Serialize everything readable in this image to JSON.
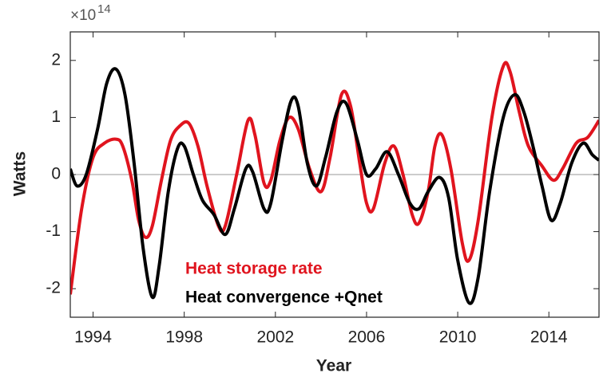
{
  "chart_data": {
    "type": "line",
    "xlabel": "Year",
    "ylabel": "Watts",
    "y_multiplier": {
      "base": "×10",
      "exponent": "14"
    },
    "xlim": [
      1993,
      2016.2
    ],
    "ylim": [
      -2.5,
      2.5
    ],
    "xticks": [
      1994,
      1998,
      2002,
      2006,
      2010,
      2014
    ],
    "yticks": [
      -2,
      -1,
      0,
      1,
      2
    ],
    "zero_line": true,
    "series": [
      {
        "name": "Heat storage rate",
        "color": "#e0141e",
        "x": [
          1993,
          1993.5,
          1994,
          1994.5,
          1995,
          1995.3,
          1995.7,
          1996,
          1996.3,
          1996.6,
          1997,
          1997.4,
          1997.8,
          1998.2,
          1998.6,
          1999,
          1999.5,
          1999.8,
          2000.3,
          2000.8,
          2001.1,
          2001.5,
          2001.8,
          2002.2,
          2002.6,
          2003,
          2003.5,
          2004,
          2004.4,
          2004.9,
          2005.3,
          2005.7,
          2006,
          2006.3,
          2006.8,
          2007.2,
          2007.6,
          2008,
          2008.3,
          2008.7,
          2009,
          2009.3,
          2009.7,
          2010.2,
          2010.5,
          2010.9,
          2011.5,
          2012,
          2012.3,
          2012.7,
          2013.1,
          2013.7,
          2014.2,
          2014.6,
          2015.2,
          2015.7,
          2016.2
        ],
        "values": [
          -2.1,
          -0.6,
          0.3,
          0.55,
          0.62,
          0.5,
          -0.1,
          -0.8,
          -1.1,
          -0.9,
          -0.1,
          0.6,
          0.85,
          0.9,
          0.5,
          -0.2,
          -0.9,
          -0.9,
          0.0,
          0.95,
          0.7,
          -0.15,
          -0.1,
          0.6,
          1.0,
          0.8,
          0.1,
          -0.3,
          0.3,
          1.4,
          1.2,
          0.2,
          -0.5,
          -0.6,
          0.2,
          0.5,
          0.0,
          -0.7,
          -0.85,
          -0.3,
          0.5,
          0.7,
          0.1,
          -1.2,
          -1.5,
          -0.8,
          1.0,
          1.9,
          1.8,
          1.1,
          0.5,
          0.15,
          -0.1,
          0.1,
          0.55,
          0.65,
          0.95
        ]
      },
      {
        "name": "Heat convergence +Qnet",
        "color": "#000000",
        "x": [
          1993,
          1993.3,
          1993.7,
          1994.2,
          1994.6,
          1995,
          1995.4,
          1995.8,
          1996.2,
          1996.6,
          1996.9,
          1997.3,
          1997.7,
          1998,
          1998.4,
          1998.8,
          1999.3,
          1999.8,
          2000.2,
          2000.7,
          2001,
          2001.5,
          2001.8,
          2002.3,
          2002.7,
          2003,
          2003.4,
          2003.8,
          2004.2,
          2004.7,
          2005.1,
          2005.6,
          2006,
          2006.4,
          2006.9,
          2007.4,
          2007.9,
          2008.3,
          2008.7,
          2009.2,
          2009.6,
          2010,
          2010.5,
          2010.9,
          2011.4,
          2012,
          2012.5,
          2012.9,
          2013.3,
          2013.7,
          2014.1,
          2014.5,
          2015,
          2015.5,
          2015.9,
          2016.2
        ],
        "values": [
          0.1,
          -0.2,
          0.0,
          0.8,
          1.6,
          1.85,
          1.4,
          0.2,
          -1.3,
          -2.15,
          -1.6,
          -0.3,
          0.45,
          0.5,
          0.0,
          -0.45,
          -0.7,
          -1.05,
          -0.6,
          0.1,
          0.05,
          -0.6,
          -0.5,
          0.6,
          1.3,
          1.2,
          0.2,
          -0.2,
          0.3,
          1.1,
          1.25,
          0.6,
          0.0,
          0.1,
          0.4,
          0.0,
          -0.5,
          -0.6,
          -0.3,
          -0.05,
          -0.4,
          -1.5,
          -2.25,
          -1.8,
          -0.3,
          1.0,
          1.4,
          1.1,
          0.5,
          -0.2,
          -0.8,
          -0.5,
          0.2,
          0.55,
          0.35,
          0.25
        ]
      }
    ]
  }
}
